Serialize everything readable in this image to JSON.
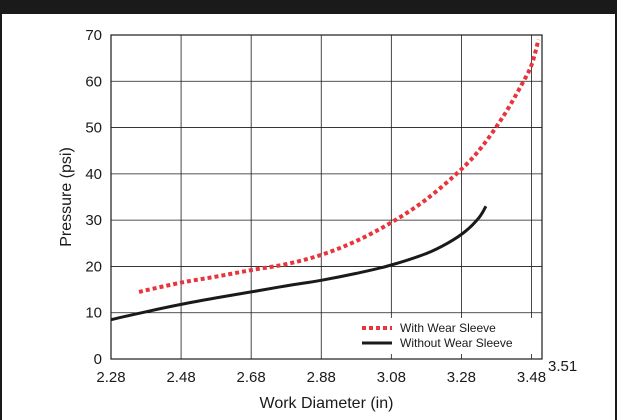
{
  "chart_data": {
    "type": "line",
    "title": "",
    "xlabel": "Work Diameter (in)",
    "ylabel": "Pressure (psi)",
    "xlim": [
      2.28,
      3.51
    ],
    "ylim": [
      0,
      70
    ],
    "x_ticks": [
      "2.28",
      "2.48",
      "2.68",
      "2.88",
      "3.08",
      "3.28",
      "3.48"
    ],
    "x_end_label": "3.51",
    "y_ticks": [
      "0",
      "10",
      "20",
      "30",
      "40",
      "50",
      "60",
      "70"
    ],
    "grid": true,
    "legend_position": "bottom-right",
    "series": [
      {
        "name": "With Wear Sleeve",
        "style": "dotted",
        "color": "#e8343a",
        "points": [
          [
            2.36,
            14.5
          ],
          [
            2.48,
            16.5
          ],
          [
            2.58,
            17.8
          ],
          [
            2.68,
            19.2
          ],
          [
            2.78,
            20.5
          ],
          [
            2.88,
            22.5
          ],
          [
            2.98,
            25.5
          ],
          [
            3.08,
            29.5
          ],
          [
            3.18,
            34.5
          ],
          [
            3.28,
            41.0
          ],
          [
            3.34,
            46.0
          ],
          [
            3.4,
            52.5
          ],
          [
            3.45,
            59.0
          ],
          [
            3.48,
            63.5
          ],
          [
            3.5,
            69.0
          ]
        ]
      },
      {
        "name": "Without Wear Sleeve",
        "style": "solid",
        "color": "#1a1a1a",
        "points": [
          [
            2.28,
            8.5
          ],
          [
            2.38,
            10.2
          ],
          [
            2.48,
            11.8
          ],
          [
            2.58,
            13.2
          ],
          [
            2.68,
            14.5
          ],
          [
            2.78,
            15.8
          ],
          [
            2.88,
            17.0
          ],
          [
            2.98,
            18.5
          ],
          [
            3.08,
            20.3
          ],
          [
            3.18,
            22.8
          ],
          [
            3.24,
            25.0
          ],
          [
            3.29,
            27.5
          ],
          [
            3.33,
            30.5
          ],
          [
            3.35,
            33.0
          ]
        ]
      }
    ]
  }
}
